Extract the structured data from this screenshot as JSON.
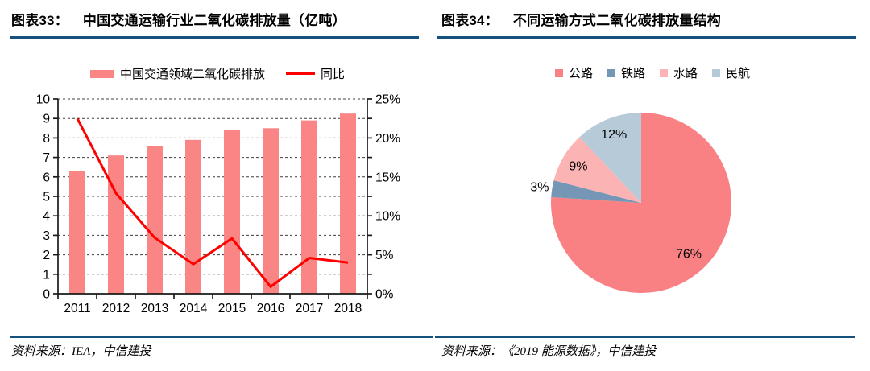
{
  "panels": [
    {
      "figure_label": "图表33：",
      "title": "中国交通运输行业二氧化碳排放量（亿吨）",
      "source": "资料来源：IEA，中信建投"
    },
    {
      "figure_label": "图表34：",
      "title": "不同运输方式二氧化碳排放量结构",
      "source": "资料来源：《2019 能源数据》，中信建投"
    }
  ],
  "chart_data": [
    {
      "type": "bar+line",
      "title": "中国交通运输行业二氧化碳排放量（亿吨）",
      "categories": [
        "2011",
        "2012",
        "2013",
        "2014",
        "2015",
        "2016",
        "2017",
        "2018"
      ],
      "series": [
        {
          "name": "中国交通领域二氧化碳排放",
          "type": "bar",
          "axis": "left",
          "color": "#FA8585",
          "values": [
            6.3,
            7.1,
            7.6,
            7.9,
            8.4,
            8.5,
            8.9,
            9.25
          ]
        },
        {
          "name": "同比",
          "type": "line",
          "axis": "right",
          "color": "#FF0000",
          "values_pct": [
            22.5,
            12.9,
            7.2,
            3.8,
            7.1,
            0.9,
            4.6,
            4.0
          ]
        }
      ],
      "left_axis": {
        "min": 0,
        "max": 10,
        "tick_step": 1,
        "tick_labels": [
          "0",
          "1",
          "2",
          "3",
          "4",
          "5",
          "6",
          "7",
          "8",
          "9",
          "10"
        ]
      },
      "right_axis": {
        "min": 0,
        "max": 25,
        "label_step": 5,
        "tick_labels": [
          "0%",
          "5%",
          "10%",
          "15%",
          "20%",
          "25%"
        ]
      },
      "grid": "horizontal-dashed",
      "legend_position": "top-center"
    },
    {
      "type": "pie",
      "title": "不同运输方式二氧化碳排放量结构",
      "start_angle_deg": 0,
      "direction": "clockwise",
      "legend_position": "top-center",
      "slices": [
        {
          "key": "road",
          "label": "公路",
          "pct": 76,
          "label_text": "76%",
          "color": "#F98184",
          "label_placement": "inside",
          "label_r": 0.77
        },
        {
          "key": "rail",
          "label": "铁路",
          "pct": 3,
          "label_text": "3%",
          "color": "#7596B4",
          "label_placement": "outside",
          "label_r": 1.14
        },
        {
          "key": "water",
          "label": "水路",
          "pct": 9,
          "label_text": "9%",
          "color": "#FBB3B4",
          "label_placement": "inside",
          "label_r": 0.81
        },
        {
          "key": "aviation",
          "label": "民航",
          "pct": 12,
          "label_text": "12%",
          "color": "#B7CAD8",
          "label_placement": "inside",
          "label_r": 0.82
        }
      ]
    }
  ],
  "theme": {
    "rule_color": "#14517F",
    "axis_color": "#1A1A1A",
    "grid_color": "#3F3F3F",
    "text_color": "#000000",
    "background": "#FFFFFF"
  }
}
